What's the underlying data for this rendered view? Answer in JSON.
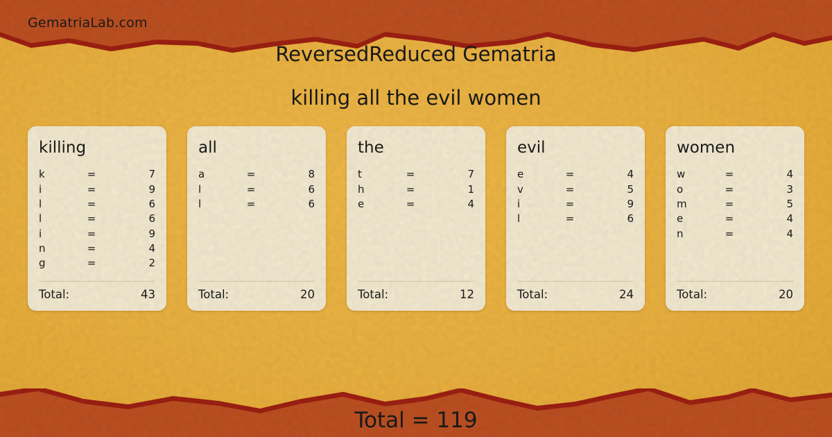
{
  "header": {
    "site": "GematriaLab.com",
    "title": "ReversedReduced Gematria",
    "phrase": "killing all the evil women"
  },
  "labels": {
    "equals": "=",
    "total": "Total:"
  },
  "cards": [
    {
      "word": "killing",
      "rows": [
        {
          "letter": "k",
          "value": 7
        },
        {
          "letter": "i",
          "value": 9
        },
        {
          "letter": "l",
          "value": 6
        },
        {
          "letter": "l",
          "value": 6
        },
        {
          "letter": "i",
          "value": 9
        },
        {
          "letter": "n",
          "value": 4
        },
        {
          "letter": "g",
          "value": 2
        }
      ],
      "total": 43
    },
    {
      "word": "all",
      "rows": [
        {
          "letter": "a",
          "value": 8
        },
        {
          "letter": "l",
          "value": 6
        },
        {
          "letter": "l",
          "value": 6
        }
      ],
      "total": 20
    },
    {
      "word": "the",
      "rows": [
        {
          "letter": "t",
          "value": 7
        },
        {
          "letter": "h",
          "value": 1
        },
        {
          "letter": "e",
          "value": 4
        }
      ],
      "total": 12
    },
    {
      "word": "evil",
      "rows": [
        {
          "letter": "e",
          "value": 4
        },
        {
          "letter": "v",
          "value": 5
        },
        {
          "letter": "i",
          "value": 9
        },
        {
          "letter": "l",
          "value": 6
        }
      ],
      "total": 24
    },
    {
      "word": "women",
      "rows": [
        {
          "letter": "w",
          "value": 4
        },
        {
          "letter": "o",
          "value": 3
        },
        {
          "letter": "m",
          "value": 5
        },
        {
          "letter": "e",
          "value": 4
        },
        {
          "letter": "n",
          "value": 4
        }
      ],
      "total": 20
    }
  ],
  "footer": {
    "total_text": "Total = 119"
  },
  "colors": {
    "background_gold": "#efb440",
    "band_orange": "#c05122",
    "band_edge_red": "#a02012",
    "card_cream": "#f8efd5",
    "text_black": "#1a1a1a"
  }
}
